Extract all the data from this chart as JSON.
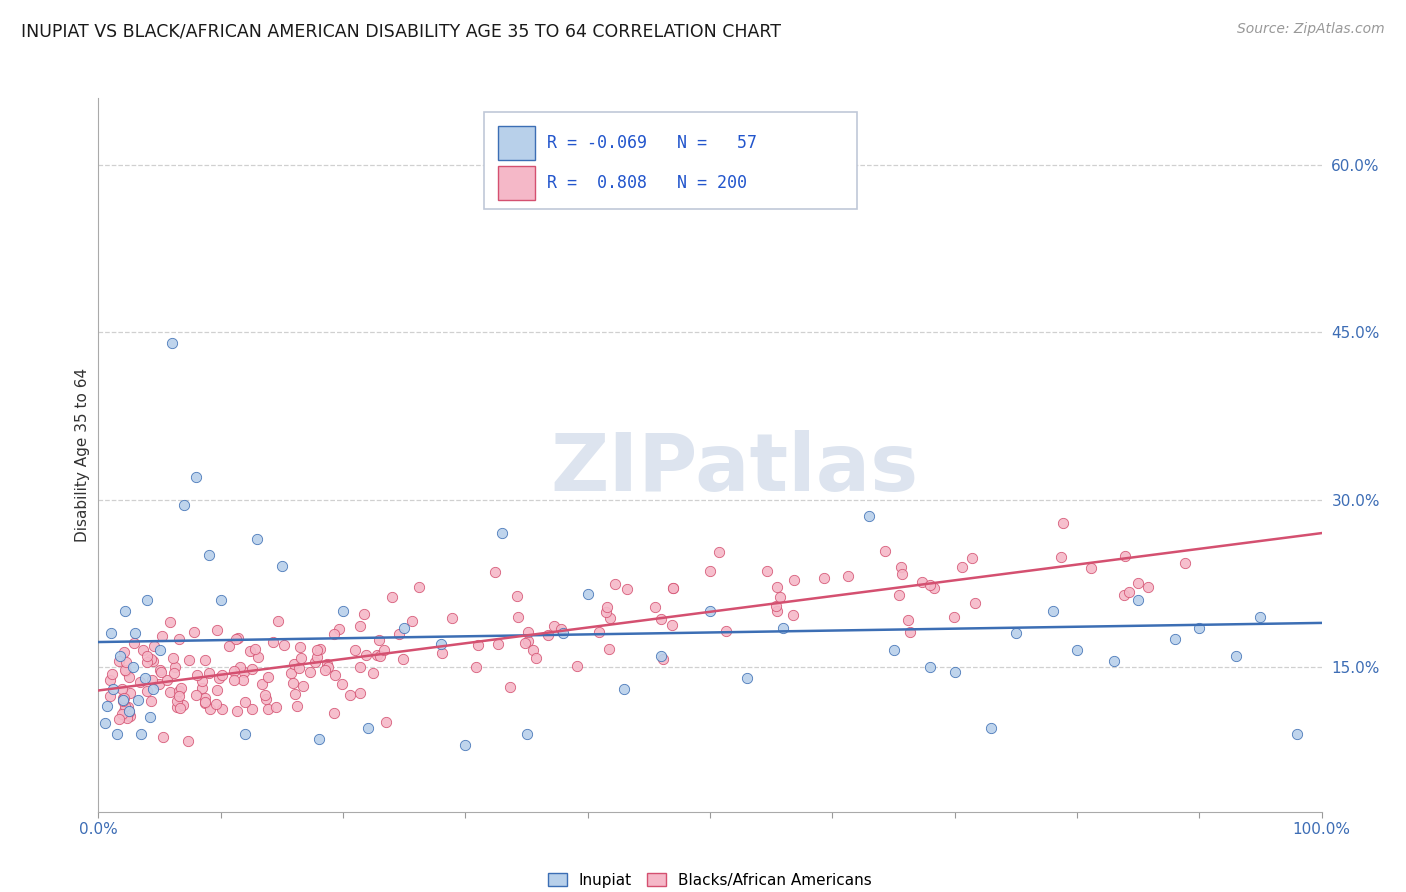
{
  "title": "INUPIAT VS BLACK/AFRICAN AMERICAN DISABILITY AGE 35 TO 64 CORRELATION CHART",
  "source": "Source: ZipAtlas.com",
  "ylabel": "Disability Age 35 to 64",
  "right_yticks": [
    "15.0%",
    "30.0%",
    "45.0%",
    "60.0%"
  ],
  "right_ytick_vals": [
    0.15,
    0.3,
    0.45,
    0.6
  ],
  "inupiat_color": "#b8d0ea",
  "black_color": "#f5b8c8",
  "inupiat_line_color": "#3c6eb4",
  "black_line_color": "#d45070",
  "background_color": "#ffffff",
  "watermark": "ZIPatlas",
  "inupiat_r": -0.069,
  "inupiat_n": 57,
  "black_r": 0.808,
  "black_n": 200,
  "ylim_low": 0.02,
  "ylim_high": 0.66,
  "xlim_low": 0.0,
  "xlim_high": 1.0
}
